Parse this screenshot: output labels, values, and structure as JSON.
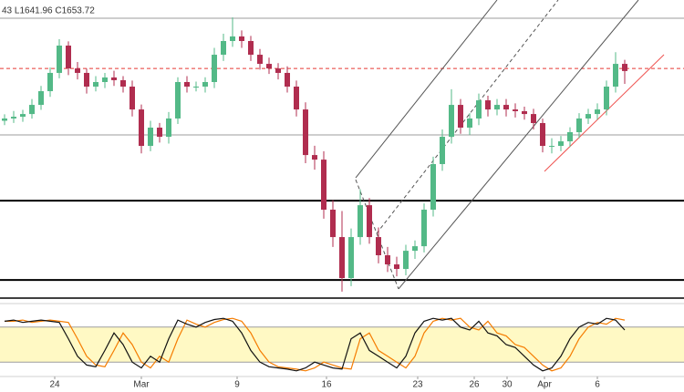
{
  "chart_data": {
    "type": "candlestick",
    "header": "43 L1641.96 C1653.72",
    "up_color": "#53b987",
    "down_color": "#b02d4f",
    "xlim": [
      -0.5,
      74.5
    ],
    "ylim": [
      1442.5,
      1719
    ],
    "xticks": [
      {
        "value": 5.5,
        "label": "24"
      },
      {
        "value": 15,
        "label": "Mar"
      },
      {
        "value": 25.5,
        "label": "9"
      },
      {
        "value": 35.3,
        "label": "16"
      },
      {
        "value": 45.3,
        "label": "23"
      },
      {
        "value": 51.5,
        "label": "26"
      },
      {
        "value": 55.1,
        "label": "30"
      },
      {
        "value": 59.2,
        "label": "Apr"
      },
      {
        "value": 65,
        "label": "6"
      }
    ],
    "open": [
      1608,
      1610.1,
      1611.7,
      1614.2,
      1622.6,
      1635.2,
      1652.0,
      1677.1,
      1656.1,
      1652.0,
      1639.4,
      1643.6,
      1647.8,
      1645.3,
      1639.4,
      1618.4,
      1584.9,
      1601.7,
      1593.3,
      1610.1,
      1643.6,
      1639.4,
      1639.4,
      1643.6,
      1668.7,
      1681.3,
      1685.5,
      1681.3,
      1668.7,
      1660.3,
      1656.1,
      1652.0,
      1639.4,
      1618.4,
      1576.5,
      1572.3,
      1526.3,
      1501.1,
      1463.4,
      1501.1,
      1530.4,
      1501.1,
      1484.4,
      1476.0,
      1471.8,
      1488.5,
      1492.7,
      1526.3,
      1568.2,
      1593.3,
      1622.6,
      1601.7,
      1610.1,
      1626.8,
      1618.4,
      1622.6,
      1618.4,
      1616.8,
      1614.2,
      1605.9,
      1584.9,
      1584.9,
      1589.1,
      1597.5,
      1610.1,
      1614.2,
      1618.4,
      1639.4,
      1660.3
    ],
    "high": [
      1614,
      1617,
      1618,
      1628,
      1640,
      1657,
      1683,
      1681,
      1662,
      1656,
      1649,
      1652,
      1654,
      1649,
      1645,
      1623,
      1608,
      1606,
      1616,
      1648,
      1649,
      1644,
      1648,
      1675,
      1688,
      1703,
      1691,
      1686,
      1674,
      1666,
      1661,
      1658,
      1645,
      1625,
      1585,
      1580,
      1535,
      1525,
      1509,
      1545,
      1537,
      1510,
      1492,
      1483,
      1494,
      1498,
      1532,
      1575,
      1600,
      1637,
      1628,
      1615,
      1633,
      1631,
      1628,
      1628,
      1624,
      1621,
      1619,
      1610,
      1592,
      1594,
      1602,
      1615,
      1619,
      1624,
      1645,
      1671,
      1664
    ],
    "low": [
      1604,
      1606,
      1607,
      1610,
      1618,
      1630,
      1647,
      1650,
      1646,
      1633,
      1635,
      1638,
      1640,
      1634,
      1612,
      1578,
      1580,
      1588,
      1587,
      1605,
      1634,
      1635,
      1634,
      1638,
      1663,
      1676,
      1675,
      1663,
      1655,
      1651,
      1646,
      1634,
      1612,
      1569,
      1563,
      1518,
      1492,
      1451,
      1456,
      1494,
      1495,
      1477,
      1469,
      1465,
      1466,
      1481,
      1487,
      1520,
      1562,
      1587,
      1596,
      1595,
      1604,
      1612,
      1613,
      1612,
      1611,
      1609,
      1600,
      1579,
      1578,
      1580,
      1584,
      1592,
      1605,
      1609,
      1613,
      1634,
      1641.96
    ],
    "close": [
      1610.1,
      1611.7,
      1614.2,
      1622.6,
      1635.2,
      1652.0,
      1677.1,
      1656.1,
      1652.0,
      1639.4,
      1643.6,
      1647.8,
      1645.3,
      1639.4,
      1618.4,
      1584.9,
      1601.7,
      1593.3,
      1610.1,
      1643.6,
      1639.4,
      1639.4,
      1643.6,
      1668.7,
      1681.3,
      1685.5,
      1681.3,
      1668.7,
      1660.3,
      1656.1,
      1652.0,
      1639.4,
      1618.4,
      1576.5,
      1572.3,
      1526.3,
      1501.1,
      1463.4,
      1501.1,
      1530.4,
      1501.1,
      1484.4,
      1476.0,
      1471.8,
      1488.5,
      1492.7,
      1526.3,
      1568.2,
      1593.3,
      1622.6,
      1601.7,
      1610.1,
      1626.8,
      1618.4,
      1622.6,
      1618.4,
      1616.8,
      1614.2,
      1605.9,
      1584.9,
      1584.9,
      1589.1,
      1597.5,
      1610.1,
      1614.2,
      1618.4,
      1639.4,
      1660.3,
      1653.72
    ],
    "hlines": [
      {
        "value": 1702.2,
        "color": "#9e9e9e",
        "width": 1,
        "dashed": false
      },
      {
        "value": 1595.0,
        "color": "#9e9e9e",
        "width": 1,
        "dashed": false
      },
      {
        "value": 1656.1,
        "color": "#e53935",
        "width": 1,
        "dashed": true
      },
      {
        "value": 1534.6,
        "color": "#000000",
        "width": 2,
        "dashed": false
      },
      {
        "value": 1461.7,
        "color": "#000000",
        "width": 2,
        "dashed": false
      },
      {
        "value": 1445.0,
        "color": "#000000",
        "width": 1.5,
        "dashed": false
      }
    ],
    "trendlines": [
      {
        "x": [
          43.2,
          69.5
        ],
        "y": [
          1453.4,
          1719
        ],
        "color": "#555555",
        "dashed": false
      },
      {
        "x": [
          38.5,
          54
        ],
        "y": [
          1555.6,
          1719
        ],
        "color": "#555555",
        "dashed": false
      },
      {
        "x": [
          40.8,
          60.7
        ],
        "y": [
          1504.5,
          1719
        ],
        "color": "#555555",
        "dashed": true
      },
      {
        "x": [
          38.5,
          43.2
        ],
        "y": [
          1553.9,
          1453.4
        ],
        "color": "#555555",
        "dashed": true
      },
      {
        "x": [
          59.2,
          72.3
        ],
        "y": [
          1561.5,
          1668.7
        ],
        "color": "#ef5350",
        "dashed": false
      }
    ],
    "stoch": {
      "ylim": [
        0,
        100
      ],
      "bands": [
        20,
        80
      ],
      "band_color": "#fff9c4",
      "series": [
        {
          "color": "#111111",
          "values": [
            90,
            92,
            88,
            90,
            92,
            90,
            88,
            60,
            30,
            15,
            12,
            40,
            70,
            50,
            20,
            10,
            30,
            20,
            60,
            92,
            85,
            80,
            88,
            93,
            95,
            90,
            70,
            40,
            20,
            12,
            10,
            8,
            5,
            10,
            20,
            15,
            10,
            8,
            60,
            70,
            40,
            30,
            20,
            10,
            30,
            70,
            90,
            95,
            92,
            95,
            80,
            75,
            90,
            70,
            65,
            50,
            45,
            30,
            15,
            5,
            10,
            30,
            60,
            80,
            88,
            85,
            95,
            92,
            75
          ]
        },
        {
          "color": "#f57c00",
          "values": [
            90,
            90,
            92,
            88,
            90,
            92,
            90,
            88,
            60,
            30,
            15,
            12,
            40,
            70,
            50,
            20,
            10,
            30,
            20,
            60,
            92,
            85,
            80,
            88,
            93,
            95,
            90,
            70,
            40,
            20,
            12,
            10,
            8,
            5,
            10,
            20,
            15,
            10,
            8,
            60,
            70,
            40,
            30,
            20,
            10,
            30,
            70,
            90,
            95,
            92,
            95,
            80,
            75,
            90,
            70,
            65,
            50,
            45,
            30,
            15,
            5,
            10,
            30,
            60,
            80,
            88,
            85,
            95,
            92
          ]
        }
      ]
    }
  }
}
